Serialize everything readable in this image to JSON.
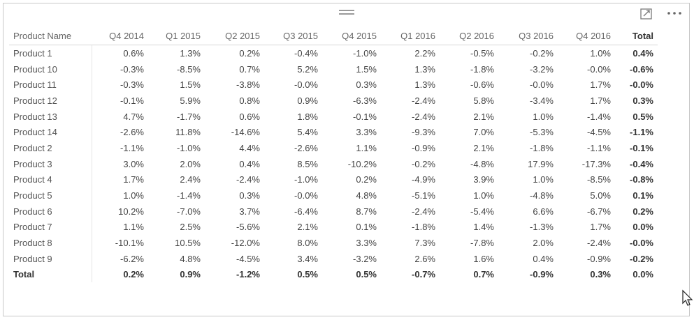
{
  "visual": {
    "focus_icon": "focus-mode-icon",
    "more_icon": "more-options-icon"
  },
  "table": {
    "columns": [
      "Product Name",
      "Q4 2014",
      "Q1 2015",
      "Q2 2015",
      "Q3 2015",
      "Q4 2015",
      "Q1 2016",
      "Q2 2016",
      "Q3 2016",
      "Q4 2016",
      "Total"
    ],
    "rows": [
      [
        "Product 1",
        "0.6%",
        "1.3%",
        "0.2%",
        "-0.4%",
        "-1.0%",
        "2.2%",
        "-0.5%",
        "-0.2%",
        "1.0%",
        "0.4%"
      ],
      [
        "Product 10",
        "-0.3%",
        "-8.5%",
        "0.7%",
        "5.2%",
        "1.5%",
        "1.3%",
        "-1.8%",
        "-3.2%",
        "-0.0%",
        "-0.6%"
      ],
      [
        "Product 11",
        "-0.3%",
        "1.5%",
        "-3.8%",
        "-0.0%",
        "0.3%",
        "1.3%",
        "-0.6%",
        "-0.0%",
        "1.7%",
        "-0.0%"
      ],
      [
        "Product 12",
        "-0.1%",
        "5.9%",
        "0.8%",
        "0.9%",
        "-6.3%",
        "-2.4%",
        "5.8%",
        "-3.4%",
        "1.7%",
        "0.3%"
      ],
      [
        "Product 13",
        "4.7%",
        "-1.7%",
        "0.6%",
        "1.8%",
        "-0.1%",
        "-2.4%",
        "2.1%",
        "1.0%",
        "-1.4%",
        "0.5%"
      ],
      [
        "Product 14",
        "-2.6%",
        "11.8%",
        "-14.6%",
        "5.4%",
        "3.3%",
        "-9.3%",
        "7.0%",
        "-5.3%",
        "-4.5%",
        "-1.1%"
      ],
      [
        "Product 2",
        "-1.1%",
        "-1.0%",
        "4.4%",
        "-2.6%",
        "1.1%",
        "-0.9%",
        "2.1%",
        "-1.8%",
        "-1.1%",
        "-0.1%"
      ],
      [
        "Product 3",
        "3.0%",
        "2.0%",
        "0.4%",
        "8.5%",
        "-10.2%",
        "-0.2%",
        "-4.8%",
        "17.9%",
        "-17.3%",
        "-0.4%"
      ],
      [
        "Product 4",
        "1.7%",
        "2.4%",
        "-2.4%",
        "-1.0%",
        "0.2%",
        "-4.9%",
        "3.9%",
        "1.0%",
        "-8.5%",
        "-0.8%"
      ],
      [
        "Product 5",
        "1.0%",
        "-1.4%",
        "0.3%",
        "-0.0%",
        "4.8%",
        "-5.1%",
        "1.0%",
        "-4.8%",
        "5.0%",
        "0.1%"
      ],
      [
        "Product 6",
        "10.2%",
        "-7.0%",
        "3.7%",
        "-6.4%",
        "8.7%",
        "-2.4%",
        "-5.4%",
        "6.6%",
        "-6.7%",
        "0.2%"
      ],
      [
        "Product 7",
        "1.1%",
        "2.5%",
        "-5.6%",
        "2.1%",
        "0.1%",
        "-1.8%",
        "1.4%",
        "-1.3%",
        "1.7%",
        "0.0%"
      ],
      [
        "Product 8",
        "-10.1%",
        "10.5%",
        "-12.0%",
        "8.0%",
        "3.3%",
        "7.3%",
        "-7.8%",
        "2.0%",
        "-2.4%",
        "-0.0%"
      ],
      [
        "Product 9",
        "-6.2%",
        "4.8%",
        "-4.5%",
        "3.4%",
        "-3.2%",
        "2.6%",
        "1.6%",
        "0.4%",
        "-0.9%",
        "-0.2%"
      ]
    ],
    "total_row": [
      "Total",
      "0.2%",
      "0.9%",
      "-1.2%",
      "0.5%",
      "0.5%",
      "-0.7%",
      "0.7%",
      "-0.9%",
      "0.3%",
      "0.0%"
    ]
  }
}
